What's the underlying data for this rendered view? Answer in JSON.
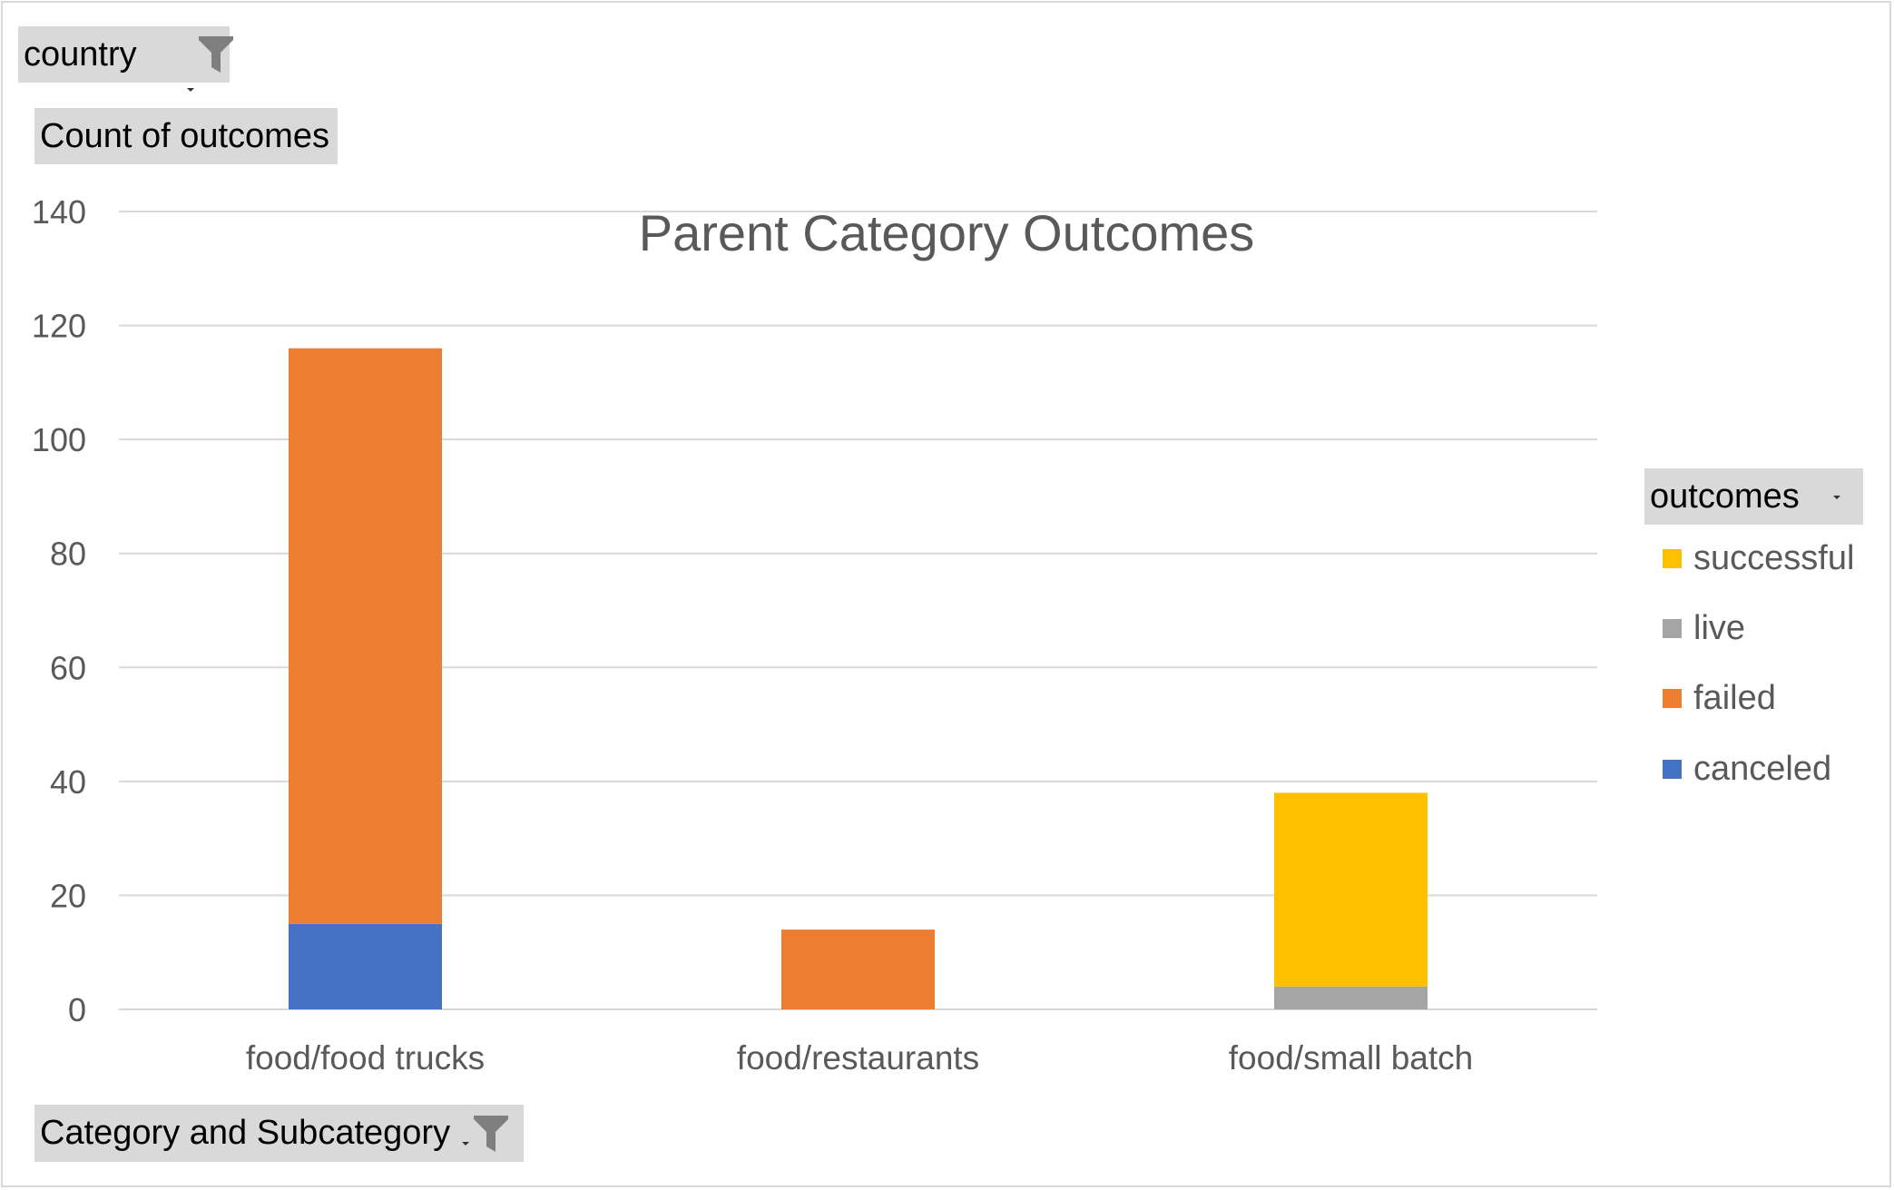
{
  "pivot": {
    "filter_field": "country",
    "values_field": "Count of outcomes",
    "axis_field": "Category and Subcategory",
    "legend_field": "outcomes"
  },
  "colors": {
    "successful": "#FFC000",
    "live": "#A5A5A5",
    "failed": "#ED7D31",
    "canceled": "#4472C4",
    "gridline": "#d9d9d9",
    "text": "#595959"
  },
  "icons": {
    "filter": "funnel-icon",
    "dropdown": "chevron-down-icon"
  },
  "chart_data": {
    "type": "bar",
    "stacked": true,
    "title": "Parent Category Outcomes",
    "categories": [
      "food/food trucks",
      "food/restaurants",
      "food/small batch"
    ],
    "series": [
      {
        "name": "canceled",
        "values": [
          15,
          0,
          0
        ]
      },
      {
        "name": "failed",
        "values": [
          101,
          14,
          0
        ]
      },
      {
        "name": "live",
        "values": [
          0,
          0,
          4
        ]
      },
      {
        "name": "successful",
        "values": [
          0,
          0,
          34
        ]
      }
    ],
    "legend_order": [
      "successful",
      "live",
      "failed",
      "canceled"
    ],
    "ylim": [
      0,
      140
    ],
    "yticks": [
      "0",
      "20",
      "40",
      "60",
      "80",
      "100",
      "120",
      "140"
    ],
    "grid": true,
    "legend_position": "right"
  }
}
